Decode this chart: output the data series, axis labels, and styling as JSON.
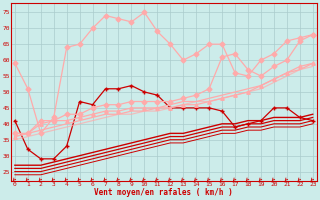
{
  "background_color": "#ccecea",
  "grid_color": "#aacccc",
  "xlabel": "Vent moyen/en rafales ( km/h )",
  "xlabel_color": "#cc0000",
  "tick_color": "#cc0000",
  "x_ticks": [
    0,
    1,
    2,
    3,
    4,
    5,
    6,
    7,
    8,
    9,
    10,
    11,
    12,
    13,
    14,
    15,
    16,
    17,
    18,
    19,
    20,
    21,
    22,
    23
  ],
  "ylim": [
    22,
    78
  ],
  "xlim": [
    -0.3,
    23.3
  ],
  "yticks": [
    25,
    30,
    35,
    40,
    45,
    50,
    55,
    60,
    65,
    70,
    75
  ],
  "lines": [
    {
      "x": [
        0,
        1,
        2,
        3,
        4,
        5,
        6,
        7,
        8,
        9,
        10,
        11,
        12,
        13,
        14,
        15,
        16,
        17,
        18,
        19,
        20,
        21,
        22,
        23
      ],
      "y": [
        41,
        32,
        29,
        29,
        33,
        47,
        46,
        51,
        51,
        52,
        50,
        49,
        45,
        45,
        45,
        45,
        44,
        39,
        40,
        41,
        45,
        45,
        42,
        41
      ],
      "color": "#cc0000",
      "linewidth": 0.9,
      "marker": "+",
      "markersize": 3.5,
      "alpha": 1.0
    },
    {
      "x": [
        0,
        1,
        2,
        3,
        4,
        5,
        6,
        7,
        8,
        9,
        10,
        11,
        12,
        13,
        14,
        15,
        16,
        17,
        18,
        19,
        20,
        21,
        22,
        23
      ],
      "y": [
        27,
        27,
        27,
        28,
        29,
        30,
        31,
        32,
        33,
        34,
        35,
        36,
        37,
        37,
        38,
        39,
        40,
        40,
        41,
        41,
        42,
        42,
        42,
        43
      ],
      "color": "#cc0000",
      "linewidth": 1.0,
      "marker": null,
      "markersize": 0,
      "alpha": 1.0
    },
    {
      "x": [
        0,
        1,
        2,
        3,
        4,
        5,
        6,
        7,
        8,
        9,
        10,
        11,
        12,
        13,
        14,
        15,
        16,
        17,
        18,
        19,
        20,
        21,
        22,
        23
      ],
      "y": [
        26,
        26,
        26,
        27,
        28,
        29,
        30,
        31,
        32,
        33,
        34,
        35,
        36,
        36,
        37,
        38,
        39,
        39,
        40,
        40,
        41,
        41,
        41,
        42
      ],
      "color": "#cc0000",
      "linewidth": 0.9,
      "marker": null,
      "markersize": 0,
      "alpha": 1.0
    },
    {
      "x": [
        0,
        1,
        2,
        3,
        4,
        5,
        6,
        7,
        8,
        9,
        10,
        11,
        12,
        13,
        14,
        15,
        16,
        17,
        18,
        19,
        20,
        21,
        22,
        23
      ],
      "y": [
        25,
        25,
        25,
        26,
        27,
        28,
        29,
        30,
        31,
        32,
        33,
        34,
        35,
        35,
        36,
        37,
        38,
        38,
        39,
        39,
        40,
        40,
        40,
        41
      ],
      "color": "#cc0000",
      "linewidth": 0.8,
      "marker": null,
      "markersize": 0,
      "alpha": 1.0
    },
    {
      "x": [
        0,
        1,
        2,
        3,
        4,
        5,
        6,
        7,
        8,
        9,
        10,
        11,
        12,
        13,
        14,
        15,
        16,
        17,
        18,
        19,
        20,
        21,
        22,
        23
      ],
      "y": [
        24,
        24,
        24,
        25,
        26,
        27,
        28,
        29,
        30,
        31,
        32,
        33,
        34,
        34,
        35,
        36,
        37,
        37,
        38,
        38,
        39,
        39,
        39,
        40
      ],
      "color": "#cc0000",
      "linewidth": 0.7,
      "marker": null,
      "markersize": 0,
      "alpha": 1.0
    },
    {
      "x": [
        0,
        1,
        2,
        3,
        4,
        5,
        6,
        7,
        8,
        9,
        10,
        11,
        12,
        13,
        14,
        15,
        16,
        17,
        18,
        19,
        20,
        21,
        22,
        23
      ],
      "y": [
        59,
        51,
        37,
        42,
        64,
        65,
        70,
        74,
        73,
        72,
        75,
        69,
        65,
        60,
        62,
        65,
        65,
        56,
        55,
        60,
        62,
        66,
        67,
        68
      ],
      "color": "#ffaaaa",
      "linewidth": 0.9,
      "marker": "D",
      "markersize": 2.5,
      "alpha": 1.0
    },
    {
      "x": [
        0,
        1,
        2,
        3,
        4,
        5,
        6,
        7,
        8,
        9,
        10,
        11,
        12,
        13,
        14,
        15,
        16,
        17,
        18,
        19,
        20,
        21,
        22,
        23
      ],
      "y": [
        37,
        37,
        41,
        41,
        43,
        43,
        45,
        46,
        46,
        47,
        47,
        47,
        47,
        48,
        49,
        51,
        61,
        62,
        57,
        55,
        58,
        60,
        66,
        68
      ],
      "color": "#ffaaaa",
      "linewidth": 0.9,
      "marker": "D",
      "markersize": 2.5,
      "alpha": 1.0
    },
    {
      "x": [
        0,
        1,
        2,
        3,
        4,
        5,
        6,
        7,
        8,
        9,
        10,
        11,
        12,
        13,
        14,
        15,
        16,
        17,
        18,
        19,
        20,
        21,
        22,
        23
      ],
      "y": [
        36,
        37,
        40,
        41,
        41,
        42,
        43,
        44,
        44,
        45,
        45,
        45,
        45,
        46,
        46,
        47,
        48,
        49,
        50,
        52,
        54,
        56,
        58,
        59
      ],
      "color": "#ffaaaa",
      "linewidth": 0.9,
      "marker": "^",
      "markersize": 2.5,
      "alpha": 1.0
    },
    {
      "x": [
        0,
        1,
        2,
        3,
        4,
        5,
        6,
        7,
        8,
        9,
        10,
        11,
        12,
        13,
        14,
        15,
        16,
        17,
        18,
        19,
        20,
        21,
        22,
        23
      ],
      "y": [
        36,
        37,
        38,
        39,
        40,
        41,
        42,
        43,
        43,
        44,
        44,
        45,
        46,
        47,
        47,
        48,
        49,
        50,
        51,
        52,
        54,
        56,
        57,
        59
      ],
      "color": "#ffaaaa",
      "linewidth": 0.9,
      "marker": null,
      "markersize": 0,
      "alpha": 1.0
    },
    {
      "x": [
        0,
        1,
        2,
        3,
        4,
        5,
        6,
        7,
        8,
        9,
        10,
        11,
        12,
        13,
        14,
        15,
        16,
        17,
        18,
        19,
        20,
        21,
        22,
        23
      ],
      "y": [
        35,
        36,
        37,
        38,
        39,
        40,
        41,
        42,
        43,
        43,
        44,
        44,
        45,
        46,
        47,
        47,
        48,
        49,
        50,
        51,
        53,
        55,
        57,
        58
      ],
      "color": "#ffaaaa",
      "linewidth": 0.9,
      "marker": null,
      "markersize": 0,
      "alpha": 0.7
    }
  ],
  "arrow_color": "#cc0000"
}
